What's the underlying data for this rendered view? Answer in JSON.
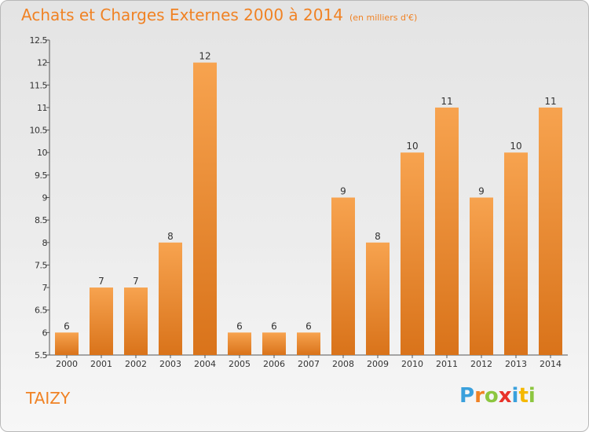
{
  "header": {
    "title": "Achats et Charges Externes 2000 à 2014",
    "unit": "(en milliers d'€)"
  },
  "footer": {
    "town": "TAIZY",
    "logo_letters": [
      "P",
      "r",
      "o",
      "x",
      "i",
      "t",
      "i"
    ],
    "logo_colors": [
      "#3aa0dc",
      "#f08224",
      "#8cc63f",
      "#e8332a",
      "#3aa0dc",
      "#f5b800",
      "#8cc63f"
    ]
  },
  "colors": {
    "accent": "#f08224",
    "bar_light": "#f7a34f",
    "bar_dark": "#d9731a",
    "axis_text": "#333333"
  },
  "chart_data": {
    "type": "bar",
    "title": "Achats et Charges Externes 2000 à 2014",
    "categories": [
      "2000",
      "2001",
      "2002",
      "2003",
      "2004",
      "2005",
      "2006",
      "2007",
      "2008",
      "2009",
      "2010",
      "2011",
      "2012",
      "2013",
      "2014"
    ],
    "values": [
      6,
      7,
      7,
      8,
      12,
      6,
      6,
      6,
      9,
      8,
      10,
      11,
      9,
      10,
      11
    ],
    "data_labels": [
      "6",
      "7",
      "7",
      "8",
      "12",
      "6",
      "6",
      "6",
      "9",
      "8",
      "10",
      "11",
      "9",
      "10",
      "11"
    ],
    "y_ticks": [
      "5.5",
      "6",
      "6.5",
      "7",
      "7.5",
      "8",
      "8.5",
      "9",
      "9.5",
      "10",
      "10.5",
      "11",
      "11.5",
      "12",
      "12.5"
    ],
    "ylim": [
      5.5,
      12.5
    ],
    "grid": false
  }
}
